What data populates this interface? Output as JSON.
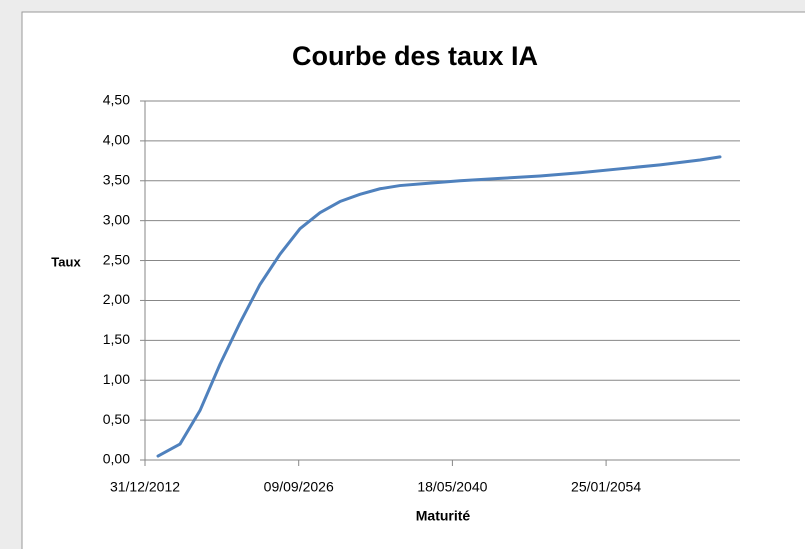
{
  "chart_data": {
    "type": "line",
    "title": "Courbe des taux IA",
    "x_label": "Maturité",
    "y_label": "Taux",
    "x": [
      41697,
      42413,
      43063,
      43714,
      44365,
      45015,
      45666,
      46316,
      46967,
      47617,
      48268,
      48919,
      49569,
      50545,
      51521,
      52822,
      54123,
      55425,
      56726,
      58028,
      59329,
      59980
    ],
    "values": [
      0.05,
      0.2,
      0.62,
      1.2,
      1.72,
      2.2,
      2.58,
      2.9,
      3.1,
      3.24,
      3.33,
      3.4,
      3.44,
      3.47,
      3.5,
      3.53,
      3.56,
      3.6,
      3.65,
      3.7,
      3.76,
      3.8
    ],
    "color": "#4f81bd",
    "xlim": [
      41274,
      60630
    ],
    "xticks": [
      {
        "value": 41274,
        "label": "31/12/2012"
      },
      {
        "value": 46274,
        "label": "09/09/2026"
      },
      {
        "value": 51274,
        "label": "18/05/2040"
      },
      {
        "value": 56274,
        "label": "25/01/2054"
      }
    ],
    "ylim": [
      0,
      4.5
    ],
    "yticks": [
      {
        "value": 0,
        "label": "0,00"
      },
      {
        "value": 0.5,
        "label": "0,50"
      },
      {
        "value": 1,
        "label": "1,00"
      },
      {
        "value": 1.5,
        "label": "1,50"
      },
      {
        "value": 2,
        "label": "2,00"
      },
      {
        "value": 2.5,
        "label": "2,50"
      },
      {
        "value": 3,
        "label": "3,00"
      },
      {
        "value": 3.5,
        "label": "3,50"
      },
      {
        "value": 4,
        "label": "4,00"
      },
      {
        "value": 4.5,
        "label": "4,50"
      }
    ],
    "grid": true
  }
}
